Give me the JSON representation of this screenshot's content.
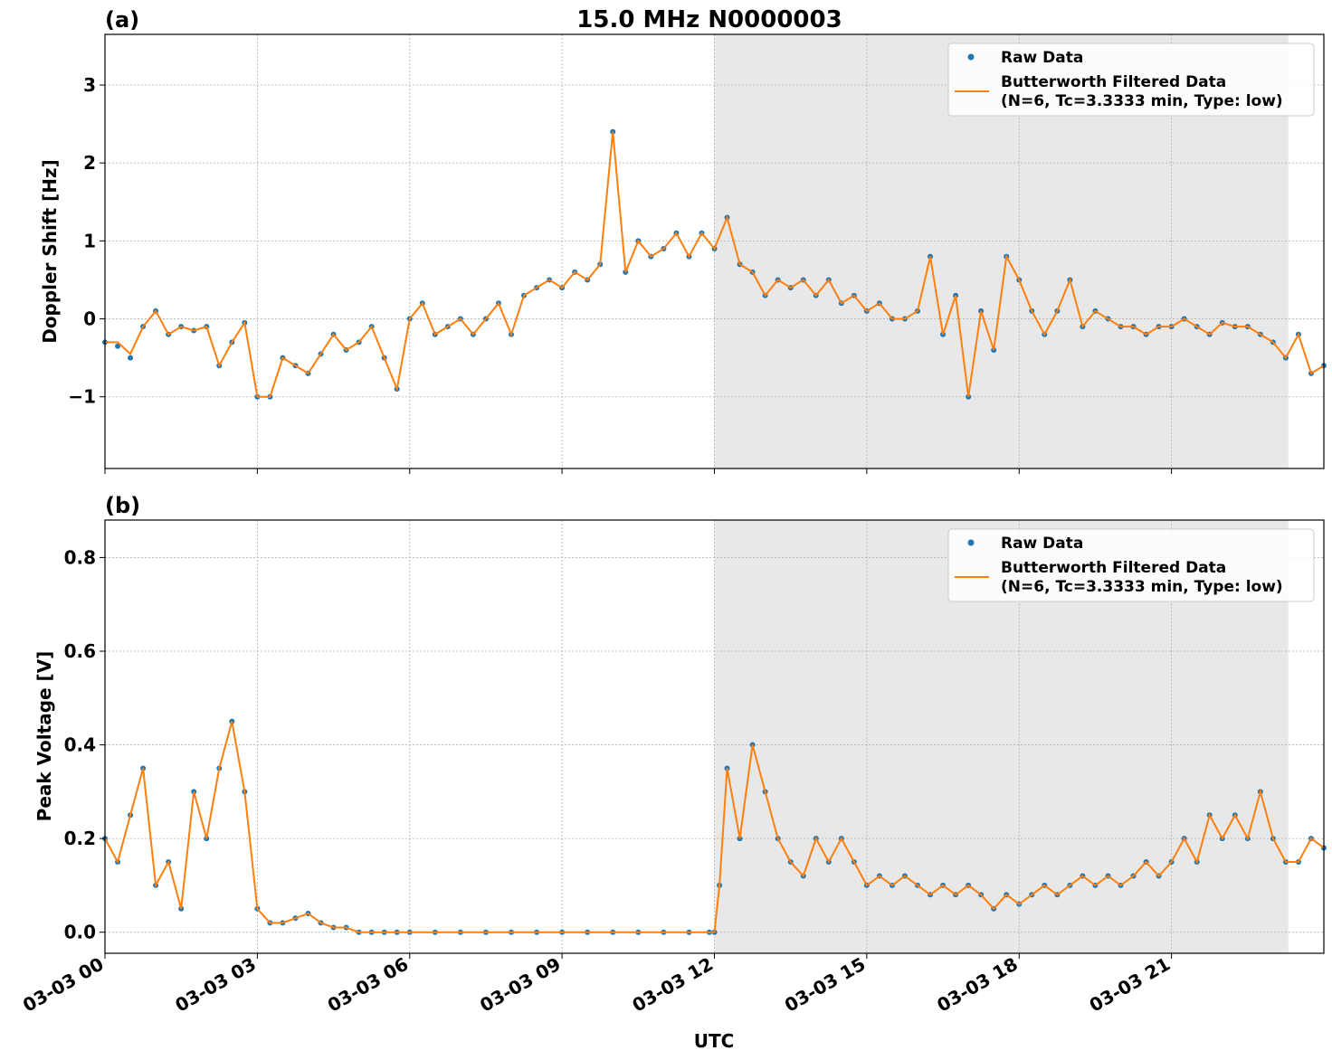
{
  "chart_data": [
    {
      "type": "scatter",
      "panel_label": "(a)",
      "title": "15.0 MHz N0000003",
      "xlabel": "",
      "ylabel": "Doppler Shift [Hz]",
      "xlim": [
        0,
        24
      ],
      "ylim": [
        -1.92,
        3.65
      ],
      "yticks": [
        -1,
        0,
        1,
        2,
        3
      ],
      "ytick_labels": [
        "−1",
        "0",
        "1",
        "2",
        "3"
      ],
      "shaded_region": [
        12.0,
        23.3
      ],
      "legend": {
        "position": "top-right",
        "entries": [
          {
            "label": "Raw Data",
            "color": "#1f77b4",
            "marker": "dot"
          },
          {
            "label": "Butterworth Filtered Data",
            "label2": "(N=6, Tc=3.3333 min, Type: low)",
            "color": "#ff7f0e",
            "marker": "line"
          }
        ]
      },
      "series": [
        {
          "name": "Raw Data",
          "color": "#1f77b4",
          "x": [
            0.0,
            0.25,
            0.5,
            0.75,
            1.0,
            1.25,
            1.5,
            1.75,
            2.0,
            2.25,
            2.5,
            2.75,
            3.0,
            3.25,
            3.5,
            3.75,
            4.0,
            4.25,
            4.5,
            4.75,
            5.0,
            5.25,
            5.5,
            5.75,
            6.0,
            6.25,
            6.5,
            6.75,
            7.0,
            7.25,
            7.5,
            7.75,
            8.0,
            8.25,
            8.5,
            8.75,
            9.0,
            9.25,
            9.5,
            9.75,
            10.0,
            10.25,
            10.5,
            10.75,
            11.0,
            11.25,
            11.5,
            11.75,
            12.0,
            12.25,
            12.5,
            12.75,
            13.0,
            13.25,
            13.5,
            13.75,
            14.0,
            14.25,
            14.5,
            14.75,
            15.0,
            15.25,
            15.5,
            15.75,
            16.0,
            16.25,
            16.5,
            16.75,
            17.0,
            17.25,
            17.5,
            17.75,
            18.0,
            18.25,
            18.5,
            18.75,
            19.0,
            19.25,
            19.5,
            19.75,
            20.0,
            20.25,
            20.5,
            20.75,
            21.0,
            21.25,
            21.5,
            21.75,
            22.0,
            22.25,
            22.5,
            22.75,
            23.0,
            23.25,
            23.5,
            23.75,
            24.0
          ],
          "y": [
            -0.3,
            -0.35,
            -0.5,
            -0.1,
            0.1,
            -0.2,
            -0.1,
            -0.15,
            -0.1,
            -0.6,
            -0.3,
            -0.05,
            -1.0,
            -1.0,
            -0.5,
            -0.6,
            -0.7,
            -0.45,
            -0.2,
            -0.4,
            -0.3,
            -0.1,
            -0.5,
            -0.9,
            0.0,
            0.2,
            -0.2,
            -0.1,
            0.0,
            -0.2,
            0.0,
            0.2,
            -0.2,
            0.3,
            0.4,
            0.5,
            0.4,
            0.6,
            0.5,
            0.7,
            2.4,
            0.6,
            1.0,
            0.8,
            0.9,
            1.1,
            0.8,
            1.1,
            0.9,
            1.3,
            0.7,
            0.6,
            0.3,
            0.5,
            0.4,
            0.5,
            0.3,
            0.5,
            0.2,
            0.3,
            0.1,
            0.2,
            0.0,
            0.0,
            0.1,
            0.8,
            -0.2,
            0.3,
            -1.0,
            0.1,
            -0.4,
            0.8,
            0.5,
            0.1,
            -0.2,
            0.1,
            0.5,
            -0.1,
            0.1,
            0.0,
            -0.1,
            -0.1,
            -0.2,
            -0.1,
            -0.1,
            0.0,
            -0.1,
            -0.2,
            -0.05,
            -0.1,
            -0.1,
            -0.2,
            -0.3,
            -0.5,
            -0.2,
            -0.7,
            -0.6
          ]
        },
        {
          "name": "Butterworth Filtered Data",
          "color": "#ff7f0e",
          "x": [
            0.0,
            0.25,
            0.5,
            0.75,
            1.0,
            1.25,
            1.5,
            1.75,
            2.0,
            2.25,
            2.5,
            2.75,
            3.0,
            3.25,
            3.5,
            3.75,
            4.0,
            4.25,
            4.5,
            4.75,
            5.0,
            5.25,
            5.5,
            5.75,
            6.0,
            6.25,
            6.5,
            6.75,
            7.0,
            7.25,
            7.5,
            7.75,
            8.0,
            8.25,
            8.5,
            8.75,
            9.0,
            9.25,
            9.5,
            9.75,
            10.0,
            10.25,
            10.5,
            10.75,
            11.0,
            11.25,
            11.5,
            11.75,
            12.0,
            12.25,
            12.5,
            12.75,
            13.0,
            13.25,
            13.5,
            13.75,
            14.0,
            14.25,
            14.5,
            14.75,
            15.0,
            15.25,
            15.5,
            15.75,
            16.0,
            16.25,
            16.5,
            16.75,
            17.0,
            17.25,
            17.5,
            17.75,
            18.0,
            18.25,
            18.5,
            18.75,
            19.0,
            19.25,
            19.5,
            19.75,
            20.0,
            20.25,
            20.5,
            20.75,
            21.0,
            21.25,
            21.5,
            21.75,
            22.0,
            22.25,
            22.5,
            22.75,
            23.0,
            23.25,
            23.5,
            23.75,
            24.0
          ],
          "y": [
            -0.3,
            -0.3,
            -0.45,
            -0.1,
            0.1,
            -0.2,
            -0.1,
            -0.15,
            -0.1,
            -0.6,
            -0.3,
            -0.05,
            -1.0,
            -1.0,
            -0.5,
            -0.6,
            -0.7,
            -0.45,
            -0.2,
            -0.4,
            -0.3,
            -0.1,
            -0.5,
            -0.9,
            0.0,
            0.2,
            -0.2,
            -0.1,
            0.0,
            -0.2,
            0.0,
            0.2,
            -0.2,
            0.3,
            0.4,
            0.5,
            0.4,
            0.6,
            0.5,
            0.7,
            2.4,
            0.6,
            1.0,
            0.8,
            0.9,
            1.1,
            0.8,
            1.1,
            0.9,
            1.3,
            0.7,
            0.6,
            0.3,
            0.5,
            0.4,
            0.5,
            0.3,
            0.5,
            0.2,
            0.3,
            0.1,
            0.2,
            0.0,
            0.0,
            0.1,
            0.8,
            -0.2,
            0.3,
            -1.0,
            0.1,
            -0.4,
            0.8,
            0.5,
            0.1,
            -0.2,
            0.1,
            0.5,
            -0.1,
            0.1,
            0.0,
            -0.1,
            -0.1,
            -0.2,
            -0.1,
            -0.1,
            0.0,
            -0.1,
            -0.2,
            -0.05,
            -0.1,
            -0.1,
            -0.2,
            -0.3,
            -0.5,
            -0.2,
            -0.7,
            -0.6
          ]
        }
      ]
    },
    {
      "type": "scatter",
      "panel_label": "(b)",
      "title": "",
      "xlabel": "UTC",
      "ylabel": "Peak Voltage [V]",
      "xlim": [
        0,
        24
      ],
      "ylim": [
        -0.045,
        0.88
      ],
      "yticks": [
        0.0,
        0.2,
        0.4,
        0.6,
        0.8
      ],
      "ytick_labels": [
        "0.0",
        "0.2",
        "0.4",
        "0.6",
        "0.8"
      ],
      "xticks": [
        0,
        3,
        6,
        9,
        12,
        15,
        18,
        21
      ],
      "xtick_labels": [
        "03-03 00",
        "03-03 03",
        "03-03 06",
        "03-03 09",
        "03-03 12",
        "03-03 15",
        "03-03 18",
        "03-03 21"
      ],
      "shaded_region": [
        12.0,
        23.3
      ],
      "legend": {
        "position": "top-right",
        "entries": [
          {
            "label": "Raw Data",
            "color": "#1f77b4",
            "marker": "dot"
          },
          {
            "label": "Butterworth Filtered Data",
            "label2": "(N=6, Tc=3.3333 min, Type: low)",
            "color": "#ff7f0e",
            "marker": "line"
          }
        ]
      },
      "series": [
        {
          "name": "Raw Data",
          "color": "#1f77b4",
          "x": [
            0.0,
            0.25,
            0.5,
            0.75,
            1.0,
            1.25,
            1.5,
            1.75,
            2.0,
            2.25,
            2.5,
            2.75,
            3.0,
            3.25,
            3.5,
            3.75,
            4.0,
            4.25,
            4.5,
            4.75,
            5.0,
            5.25,
            5.5,
            5.75,
            6.0,
            6.5,
            7.0,
            7.5,
            8.0,
            8.5,
            9.0,
            9.5,
            10.0,
            10.5,
            11.0,
            11.5,
            11.9,
            12.0,
            12.1,
            12.25,
            12.5,
            12.75,
            13.0,
            13.25,
            13.5,
            13.75,
            14.0,
            14.25,
            14.5,
            14.75,
            15.0,
            15.25,
            15.5,
            15.75,
            16.0,
            16.25,
            16.5,
            16.75,
            17.0,
            17.25,
            17.5,
            17.75,
            18.0,
            18.25,
            18.5,
            18.75,
            19.0,
            19.25,
            19.5,
            19.75,
            20.0,
            20.25,
            20.5,
            20.75,
            21.0,
            21.25,
            21.5,
            21.75,
            22.0,
            22.25,
            22.5,
            22.75,
            23.0,
            23.25,
            23.5,
            23.75,
            24.0
          ],
          "y": [
            0.2,
            0.15,
            0.25,
            0.35,
            0.1,
            0.15,
            0.05,
            0.3,
            0.2,
            0.35,
            0.45,
            0.3,
            0.05,
            0.02,
            0.02,
            0.03,
            0.04,
            0.02,
            0.01,
            0.01,
            0.0,
            0.0,
            0.0,
            0.0,
            0.0,
            0.0,
            0.0,
            0.0,
            0.0,
            0.0,
            0.0,
            0.0,
            0.0,
            0.0,
            0.0,
            0.0,
            0.0,
            0.0,
            0.1,
            0.35,
            0.2,
            0.4,
            0.3,
            0.2,
            0.15,
            0.12,
            0.2,
            0.15,
            0.2,
            0.15,
            0.1,
            0.12,
            0.1,
            0.12,
            0.1,
            0.08,
            0.1,
            0.08,
            0.1,
            0.08,
            0.05,
            0.08,
            0.06,
            0.08,
            0.1,
            0.08,
            0.1,
            0.12,
            0.1,
            0.12,
            0.1,
            0.12,
            0.15,
            0.12,
            0.15,
            0.2,
            0.15,
            0.25,
            0.2,
            0.25,
            0.2,
            0.3,
            0.2,
            0.15,
            0.15,
            0.2,
            0.18
          ]
        },
        {
          "name": "Butterworth Filtered Data",
          "color": "#ff7f0e",
          "x": [
            0.0,
            0.25,
            0.5,
            0.75,
            1.0,
            1.25,
            1.5,
            1.75,
            2.0,
            2.25,
            2.5,
            2.75,
            3.0,
            3.25,
            3.5,
            3.75,
            4.0,
            4.25,
            4.5,
            4.75,
            5.0,
            5.25,
            5.5,
            5.75,
            6.0,
            6.5,
            7.0,
            7.5,
            8.0,
            8.5,
            9.0,
            9.5,
            10.0,
            10.5,
            11.0,
            11.5,
            11.9,
            12.0,
            12.1,
            12.25,
            12.5,
            12.75,
            13.0,
            13.25,
            13.5,
            13.75,
            14.0,
            14.25,
            14.5,
            14.75,
            15.0,
            15.25,
            15.5,
            15.75,
            16.0,
            16.25,
            16.5,
            16.75,
            17.0,
            17.25,
            17.5,
            17.75,
            18.0,
            18.25,
            18.5,
            18.75,
            19.0,
            19.25,
            19.5,
            19.75,
            20.0,
            20.25,
            20.5,
            20.75,
            21.0,
            21.25,
            21.5,
            21.75,
            22.0,
            22.25,
            22.5,
            22.75,
            23.0,
            23.25,
            23.5,
            23.75,
            24.0
          ],
          "y": [
            0.2,
            0.15,
            0.25,
            0.35,
            0.1,
            0.15,
            0.05,
            0.3,
            0.2,
            0.35,
            0.45,
            0.3,
            0.05,
            0.02,
            0.02,
            0.03,
            0.04,
            0.02,
            0.01,
            0.01,
            0.0,
            0.0,
            0.0,
            0.0,
            0.0,
            0.0,
            0.0,
            0.0,
            0.0,
            0.0,
            0.0,
            0.0,
            0.0,
            0.0,
            0.0,
            0.0,
            0.0,
            0.0,
            0.1,
            0.35,
            0.2,
            0.4,
            0.3,
            0.2,
            0.15,
            0.12,
            0.2,
            0.15,
            0.2,
            0.15,
            0.1,
            0.12,
            0.1,
            0.12,
            0.1,
            0.08,
            0.1,
            0.08,
            0.1,
            0.08,
            0.05,
            0.08,
            0.06,
            0.08,
            0.1,
            0.08,
            0.1,
            0.12,
            0.1,
            0.12,
            0.1,
            0.12,
            0.15,
            0.12,
            0.15,
            0.2,
            0.15,
            0.25,
            0.2,
            0.25,
            0.2,
            0.3,
            0.2,
            0.15,
            0.15,
            0.2,
            0.18
          ]
        }
      ]
    }
  ]
}
